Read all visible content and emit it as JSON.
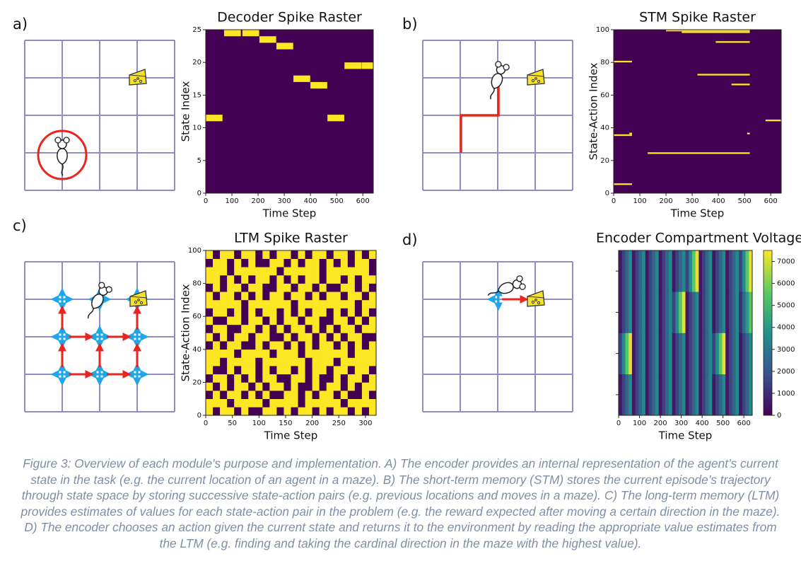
{
  "panels": {
    "labels": [
      "a)",
      "b)",
      "c)",
      "d)"
    ]
  },
  "caption": "Figure 3: Overview of each module's purpose and implementation. A) The encoder provides an internal representation of the agent’s current state in the task (e.g. the current location of an agent in a maze). B) The short-term memory (STM) stores the current episode’s trajectory through state space by storing successive state-action pairs (e.g. previous locations and moves in a maze). C) The long-term memory (LTM) provides estimates of values for each state-action pair in the problem (e.g. the reward expected after moving a certain direction in the maze). D) The encoder chooses an action given the current state and returns it to the environment by reading the appropriate value estimates from the LTM (e.g. finding and taking the cardinal direction in the maze with the highest value).",
  "chart_data": [
    {
      "type": "raster",
      "title": "Decoder Spike Raster",
      "xlabel": "Time Step",
      "ylabel": "State Index",
      "xlim": [
        0,
        640
      ],
      "ylim": [
        0,
        25
      ],
      "xticks": [
        0,
        100,
        200,
        300,
        400,
        500,
        600
      ],
      "yticks": [
        0,
        5,
        10,
        15,
        20,
        25
      ],
      "background": "#440154",
      "color": "#fde725",
      "events": [
        {
          "x": [
            0,
            64
          ],
          "y": 11
        },
        {
          "x": [
            70,
            134
          ],
          "y": 24
        },
        {
          "x": [
            140,
            204
          ],
          "y": 24
        },
        {
          "x": [
            205,
            269
          ],
          "y": 23
        },
        {
          "x": [
            270,
            334
          ],
          "y": 22
        },
        {
          "x": [
            335,
            399
          ],
          "y": 17
        },
        {
          "x": [
            400,
            464
          ],
          "y": 16
        },
        {
          "x": [
            465,
            529
          ],
          "y": 11
        },
        {
          "x": [
            530,
            594
          ],
          "y": 19
        },
        {
          "x": [
            595,
            640
          ],
          "y": 19
        }
      ]
    },
    {
      "type": "raster",
      "title": "STM Spike Raster",
      "xlabel": "Time Step",
      "ylabel": "State-Action Index",
      "xlim": [
        0,
        640
      ],
      "ylim": [
        0,
        100
      ],
      "xticks": [
        0,
        100,
        200,
        300,
        400,
        500,
        600
      ],
      "yticks": [
        0,
        20,
        40,
        60,
        80,
        100
      ],
      "background": "#440154",
      "color": "#fde725",
      "events": [
        {
          "x": [
            0,
            70
          ],
          "y": 5
        },
        {
          "x": [
            0,
            70
          ],
          "y": 35
        },
        {
          "x": [
            60,
            70
          ],
          "y": 36
        },
        {
          "x": [
            0,
            70
          ],
          "y": 80
        },
        {
          "x": [
            130,
            520
          ],
          "y": 24
        },
        {
          "x": [
            200,
            520
          ],
          "y": 99
        },
        {
          "x": [
            260,
            520
          ],
          "y": 98
        },
        {
          "x": [
            390,
            520
          ],
          "y": 92
        },
        {
          "x": [
            320,
            520
          ],
          "y": 72
        },
        {
          "x": [
            450,
            520
          ],
          "y": 66
        },
        {
          "x": [
            510,
            520
          ],
          "y": 36
        },
        {
          "x": [
            580,
            640
          ],
          "y": 44
        }
      ]
    },
    {
      "type": "matrix",
      "title": "LTM Spike Raster",
      "xlabel": "Time Step",
      "ylabel": "State-Action Index",
      "xlim": [
        0,
        320
      ],
      "ylim": [
        0,
        100
      ],
      "xticks": [
        0,
        50,
        100,
        150,
        200,
        250,
        300
      ],
      "yticks": [
        0,
        20,
        40,
        60,
        80,
        100
      ],
      "background": "#440154",
      "color": "#fde725",
      "values": [
        [
          1,
          0,
          1,
          1,
          0,
          1,
          0,
          0,
          1,
          1,
          0,
          1,
          0,
          1,
          1,
          0,
          1,
          0,
          1,
          1,
          0,
          1,
          0,
          1
        ],
        [
          1,
          1,
          1,
          0,
          1,
          1,
          1,
          1,
          0,
          1,
          1,
          1,
          1,
          0,
          1,
          1,
          1,
          1,
          1,
          0,
          1,
          1,
          1,
          1
        ],
        [
          0,
          1,
          0,
          1,
          1,
          0,
          1,
          0,
          1,
          0,
          0,
          1,
          1,
          0,
          1,
          0,
          1,
          1,
          0,
          1,
          0,
          0,
          1,
          0
        ],
        [
          1,
          0,
          1,
          0,
          1,
          1,
          0,
          1,
          0,
          1,
          1,
          0,
          1,
          0,
          0,
          1,
          0,
          1,
          1,
          0,
          1,
          0,
          1,
          1
        ],
        [
          0,
          1,
          1,
          0,
          1,
          0,
          1,
          0,
          1,
          1,
          0,
          0,
          1,
          1,
          0,
          1,
          0,
          0,
          1,
          0,
          1,
          1,
          0,
          1
        ],
        [
          1,
          0,
          0,
          1,
          0,
          1,
          1,
          0,
          1,
          0,
          1,
          1,
          0,
          1,
          0,
          1,
          1,
          0,
          1,
          1,
          0,
          1,
          1,
          0
        ],
        [
          1,
          1,
          0,
          1,
          1,
          1,
          1,
          0,
          1,
          1,
          1,
          1,
          1,
          1,
          0,
          1,
          1,
          1,
          0,
          1,
          1,
          1,
          1,
          1
        ],
        [
          1,
          1,
          1,
          1,
          0,
          1,
          1,
          1,
          1,
          0,
          1,
          1,
          1,
          0,
          1,
          1,
          1,
          1,
          1,
          1,
          0,
          1,
          1,
          1
        ],
        [
          0,
          1,
          0,
          1,
          1,
          0,
          0,
          1,
          0,
          1,
          1,
          0,
          1,
          0,
          1,
          0,
          1,
          1,
          0,
          1,
          0,
          1,
          0,
          1
        ],
        [
          1,
          0,
          1,
          0,
          1,
          1,
          0,
          1,
          1,
          0,
          0,
          1,
          0,
          1,
          1,
          0,
          1,
          0,
          1,
          0,
          1,
          1,
          0,
          0
        ],
        [
          0,
          1,
          1,
          0,
          0,
          1,
          1,
          0,
          1,
          0,
          1,
          0,
          1,
          1,
          0,
          1,
          0,
          1,
          0,
          1,
          1,
          0,
          1,
          1
        ],
        [
          1,
          0,
          0,
          1,
          1,
          0,
          1,
          1,
          0,
          1,
          0,
          1,
          1,
          0,
          1,
          1,
          0,
          0,
          1,
          1,
          0,
          1,
          0,
          1
        ],
        [
          0,
          1,
          1,
          0,
          1,
          0,
          1,
          0,
          1,
          1,
          0,
          1,
          0,
          1,
          0,
          1,
          1,
          0,
          1,
          0,
          1,
          0,
          1,
          0
        ],
        [
          1,
          1,
          1,
          1,
          1,
          0,
          1,
          1,
          1,
          1,
          1,
          1,
          0,
          1,
          1,
          1,
          1,
          1,
          1,
          1,
          1,
          0,
          1,
          1
        ],
        [
          1,
          0,
          1,
          1,
          0,
          1,
          0,
          1,
          0,
          1,
          1,
          0,
          1,
          1,
          0,
          1,
          0,
          1,
          1,
          0,
          1,
          1,
          0,
          1
        ],
        [
          0,
          1,
          0,
          1,
          1,
          0,
          1,
          1,
          0,
          0,
          1,
          1,
          0,
          1,
          1,
          0,
          1,
          0,
          0,
          1,
          1,
          0,
          1,
          0
        ],
        [
          1,
          1,
          0,
          1,
          0,
          1,
          0,
          1,
          1,
          0,
          1,
          0,
          1,
          0,
          1,
          1,
          0,
          1,
          1,
          0,
          1,
          0,
          1,
          1
        ],
        [
          1,
          1,
          1,
          0,
          1,
          1,
          1,
          1,
          1,
          1,
          0,
          1,
          1,
          1,
          1,
          1,
          0,
          1,
          1,
          1,
          1,
          1,
          1,
          0
        ],
        [
          0,
          1,
          1,
          0,
          1,
          0,
          1,
          0,
          0,
          1,
          1,
          0,
          1,
          0,
          1,
          1,
          0,
          1,
          0,
          1,
          0,
          1,
          1,
          0
        ],
        [
          1,
          0,
          1,
          1,
          0,
          1,
          1,
          0,
          1,
          0,
          1,
          1,
          0,
          1,
          0,
          1,
          1,
          0,
          1,
          1,
          0,
          1,
          0,
          1
        ]
      ]
    },
    {
      "type": "heatmap",
      "title": "Encoder Compartment Voltage",
      "xlabel": "Time Step",
      "xlim": [
        0,
        640
      ],
      "xticks": [
        0,
        100,
        200,
        300,
        400,
        500,
        600
      ],
      "clim": [
        0,
        7500
      ],
      "cticks": [
        0,
        1000,
        2000,
        3000,
        4000,
        5000,
        6000,
        7000
      ],
      "values": [
        [
          500,
          1500,
          2500,
          3500,
          500,
          1500,
          2500,
          3500,
          500,
          1500,
          2500,
          3500,
          500,
          1500,
          2500,
          3500,
          500,
          1500,
          2500,
          3500,
          500,
          1500,
          2500,
          3500,
          500,
          1500,
          2500,
          3500,
          500,
          1500,
          2500,
          3500,
          500,
          1500,
          2500,
          3500,
          500,
          1500,
          2500,
          3500
        ],
        [
          1500,
          3500,
          5500,
          7200,
          500,
          1500,
          2500,
          3500,
          500,
          1500,
          2500,
          3500,
          500,
          1500,
          2500,
          3500,
          500,
          1500,
          2500,
          3500,
          500,
          1500,
          2500,
          3500,
          500,
          1500,
          2500,
          3500,
          1500,
          3500,
          5500,
          7200,
          500,
          1500,
          2500,
          3500,
          500,
          1500,
          2500,
          3500
        ],
        [
          500,
          1500,
          2500,
          3500,
          500,
          1500,
          2500,
          3500,
          500,
          1500,
          2500,
          3500,
          500,
          1500,
          2500,
          3500,
          1500,
          3500,
          5500,
          7200,
          500,
          1500,
          2500,
          3500,
          500,
          1500,
          2500,
          3500,
          500,
          1500,
          2500,
          3500,
          500,
          1500,
          2500,
          3500,
          1000,
          2500,
          4000,
          5500
        ],
        [
          500,
          1500,
          2500,
          3500,
          500,
          1500,
          2500,
          3500,
          500,
          1500,
          2500,
          3500,
          500,
          1500,
          2500,
          3500,
          500,
          1500,
          2500,
          3500,
          1500,
          3500,
          5500,
          7200,
          500,
          1500,
          2500,
          3500,
          500,
          1500,
          2500,
          3500,
          500,
          1500,
          2500,
          3500,
          1500,
          3500,
          5500,
          7200
        ]
      ]
    }
  ]
}
